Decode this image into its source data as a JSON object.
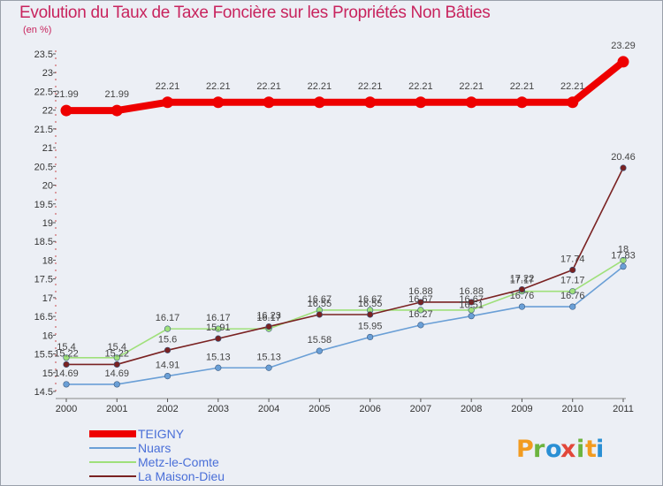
{
  "chart_data": {
    "type": "line",
    "title": "Evolution du Taux de Taxe Foncière sur les Propriétés Non Bâties",
    "subtitle": "(en %)",
    "xlabel": "",
    "ylabel": "(en %)",
    "ylim": [
      14.5,
      23.5
    ],
    "grid": false,
    "legend_position": "bottom-left",
    "x": [
      "2000",
      "2001",
      "2002",
      "2003",
      "2004",
      "2005",
      "2006",
      "2007",
      "2008",
      "2009",
      "2010",
      "2011"
    ],
    "y_ticks": [
      "14.5",
      "15",
      "15.5",
      "16",
      "16.5",
      "17",
      "17.5",
      "18",
      "18.5",
      "19",
      "19.5",
      "20",
      "20.5",
      "21",
      "21.5",
      "22",
      "22.5",
      "23",
      "23.5"
    ],
    "series": [
      {
        "name": "TEIGNY",
        "color": "#ee0000",
        "values": [
          21.99,
          21.99,
          22.21,
          22.21,
          22.21,
          22.21,
          22.21,
          22.21,
          22.21,
          22.21,
          22.21,
          23.29
        ],
        "labels": [
          "21.99",
          "21.99",
          "22.21",
          "22.21",
          "22.21",
          "22.21",
          "22.21",
          "22.21",
          "22.21",
          "22.21",
          "22.21",
          "23.29"
        ]
      },
      {
        "name": "Nuars",
        "color": "#6a9fd6",
        "values": [
          14.69,
          14.69,
          14.91,
          15.13,
          15.13,
          15.58,
          15.95,
          16.27,
          16.51,
          16.76,
          16.76,
          17.83
        ],
        "labels": [
          "14.69",
          "14.69",
          "14.91",
          "15.13",
          "15.13",
          "15.58",
          "15.95",
          "16.27",
          "16.51",
          "16.76",
          "16.76",
          "17.83"
        ]
      },
      {
        "name": "Metz-le-Comte",
        "color": "#9fe07a",
        "values": [
          15.4,
          15.4,
          16.17,
          16.17,
          16.17,
          16.67,
          16.67,
          16.67,
          16.67,
          17.17,
          17.17,
          18
        ],
        "labels": [
          "15.4",
          "15.4",
          "16.17",
          "16.17",
          "16.17",
          "16.67",
          "16.67",
          "16.67",
          "16.67",
          "17.17",
          "17.17",
          "18"
        ]
      },
      {
        "name": "La Maison-Dieu",
        "color": "#7a2222",
        "values": [
          15.22,
          15.22,
          15.6,
          15.91,
          16.23,
          16.55,
          16.55,
          16.88,
          16.88,
          17.22,
          17.74,
          20.46
        ],
        "labels": [
          "15.22",
          "15.22",
          "15.6",
          "15.91",
          "16.23",
          "16.55",
          "16.55",
          "16.88",
          "16.88",
          "17.22",
          "17.74",
          "20.46"
        ]
      }
    ]
  },
  "logo": {
    "letters": [
      "P",
      "r",
      "o",
      "x",
      "i",
      "t",
      "i"
    ],
    "colors": [
      "#f29b1f",
      "#6cb43f",
      "#2a8fd4",
      "#e2473a",
      "#6cb43f",
      "#f29b1f",
      "#2a8fd4"
    ]
  }
}
